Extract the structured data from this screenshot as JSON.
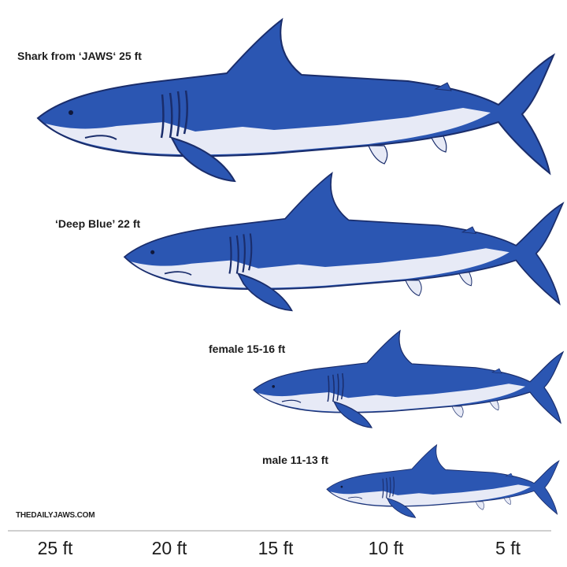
{
  "sharks": [
    {
      "label": "Shark from ‘JAWS‘ 25 ft",
      "length_ft": 25
    },
    {
      "label": "‘Deep Blue’ 22 ft",
      "length_ft": 22
    },
    {
      "label": "female 15-16 ft",
      "length_ft": 15.5
    },
    {
      "label": "male 11-13 ft",
      "length_ft": 12
    }
  ],
  "watermark": "THEDAILYJAWS.COM",
  "scale_labels": [
    "25 ft",
    "20 ft",
    "15 ft",
    "10 ft",
    "5 ft"
  ],
  "colors": {
    "body": "#2b56b2",
    "outline": "#1a2d6b",
    "belly": "#e7eaf6",
    "text": "#1c1c1c"
  }
}
